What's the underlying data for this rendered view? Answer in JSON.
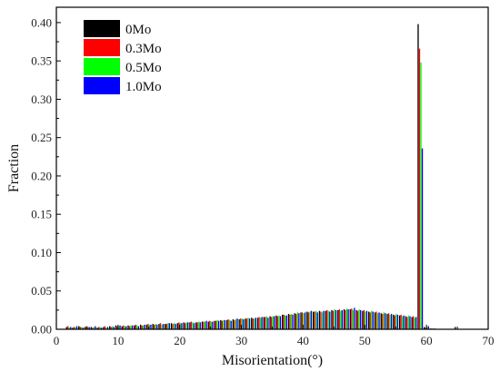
{
  "chart_data": {
    "type": "bar",
    "xlabel": "Misorientation(°)",
    "ylabel": "Fraction",
    "xlim": [
      0,
      70
    ],
    "ylim": [
      0,
      0.42
    ],
    "xticks": [
      0,
      10,
      20,
      30,
      40,
      50,
      60,
      70
    ],
    "yticks": [
      0.0,
      0.05,
      0.1,
      0.15,
      0.2,
      0.25,
      0.3,
      0.35,
      0.4
    ],
    "grid": false,
    "legend_position": "top-left",
    "bin_width": 1,
    "x": [
      2,
      3,
      4,
      5,
      6,
      7,
      8,
      9,
      10,
      11,
      12,
      13,
      14,
      15,
      16,
      17,
      18,
      19,
      20,
      21,
      22,
      23,
      24,
      25,
      26,
      27,
      28,
      29,
      30,
      31,
      32,
      33,
      34,
      35,
      36,
      37,
      38,
      39,
      40,
      41,
      42,
      43,
      44,
      45,
      46,
      47,
      48,
      49,
      50,
      51,
      52,
      53,
      54,
      55,
      56,
      57,
      58,
      59,
      60,
      61,
      62,
      63,
      64,
      65
    ],
    "series": [
      {
        "name": "0Mo",
        "color": "#000000",
        "values": [
          0.003,
          0.002,
          0.004,
          0.003,
          0.003,
          0.002,
          0.003,
          0.004,
          0.005,
          0.004,
          0.005,
          0.005,
          0.006,
          0.006,
          0.007,
          0.007,
          0.007,
          0.008,
          0.008,
          0.009,
          0.009,
          0.009,
          0.01,
          0.01,
          0.011,
          0.012,
          0.012,
          0.013,
          0.013,
          0.014,
          0.015,
          0.015,
          0.016,
          0.017,
          0.018,
          0.019,
          0.02,
          0.021,
          0.022,
          0.023,
          0.023,
          0.024,
          0.024,
          0.025,
          0.025,
          0.026,
          0.026,
          0.025,
          0.024,
          0.023,
          0.022,
          0.021,
          0.02,
          0.019,
          0.018,
          0.017,
          0.016,
          0.398,
          0.003,
          0.001,
          0.0,
          0.0,
          0.0,
          0.003
        ]
      },
      {
        "name": "0.3Mo",
        "color": "#ff0000",
        "values": [
          0.004,
          0.003,
          0.003,
          0.004,
          0.002,
          0.003,
          0.004,
          0.003,
          0.004,
          0.005,
          0.004,
          0.006,
          0.005,
          0.007,
          0.006,
          0.008,
          0.007,
          0.007,
          0.009,
          0.008,
          0.01,
          0.009,
          0.01,
          0.011,
          0.011,
          0.011,
          0.013,
          0.012,
          0.014,
          0.014,
          0.014,
          0.016,
          0.016,
          0.016,
          0.017,
          0.019,
          0.019,
          0.02,
          0.022,
          0.022,
          0.023,
          0.023,
          0.025,
          0.024,
          0.026,
          0.025,
          0.027,
          0.024,
          0.025,
          0.022,
          0.023,
          0.02,
          0.021,
          0.018,
          0.019,
          0.016,
          0.017,
          0.366,
          0.002,
          0.001,
          0.0,
          0.0,
          0.0,
          0.0
        ]
      },
      {
        "name": "0.5Mo",
        "color": "#00ff00",
        "values": [
          0.002,
          0.003,
          0.003,
          0.002,
          0.003,
          0.003,
          0.002,
          0.004,
          0.004,
          0.004,
          0.005,
          0.005,
          0.005,
          0.006,
          0.007,
          0.006,
          0.008,
          0.008,
          0.008,
          0.009,
          0.009,
          0.01,
          0.01,
          0.01,
          0.012,
          0.012,
          0.012,
          0.013,
          0.014,
          0.015,
          0.014,
          0.015,
          0.017,
          0.017,
          0.018,
          0.018,
          0.02,
          0.022,
          0.021,
          0.023,
          0.024,
          0.022,
          0.024,
          0.026,
          0.024,
          0.027,
          0.025,
          0.026,
          0.023,
          0.024,
          0.021,
          0.022,
          0.019,
          0.02,
          0.017,
          0.018,
          0.015,
          0.348,
          0.003,
          0.001,
          0.0,
          0.0,
          0.0,
          0.0
        ]
      },
      {
        "name": "1.0Mo",
        "color": "#0000ff",
        "values": [
          0.003,
          0.004,
          0.002,
          0.003,
          0.004,
          0.002,
          0.003,
          0.003,
          0.005,
          0.004,
          0.005,
          0.004,
          0.006,
          0.006,
          0.006,
          0.007,
          0.008,
          0.007,
          0.008,
          0.009,
          0.008,
          0.009,
          0.011,
          0.01,
          0.011,
          0.012,
          0.011,
          0.014,
          0.013,
          0.014,
          0.015,
          0.016,
          0.015,
          0.017,
          0.017,
          0.018,
          0.019,
          0.021,
          0.022,
          0.024,
          0.022,
          0.024,
          0.023,
          0.025,
          0.025,
          0.026,
          0.028,
          0.025,
          0.024,
          0.023,
          0.022,
          0.021,
          0.02,
          0.019,
          0.018,
          0.017,
          0.016,
          0.236,
          0.004,
          0.001,
          0.0,
          0.0,
          0.0,
          0.0
        ]
      }
    ]
  }
}
